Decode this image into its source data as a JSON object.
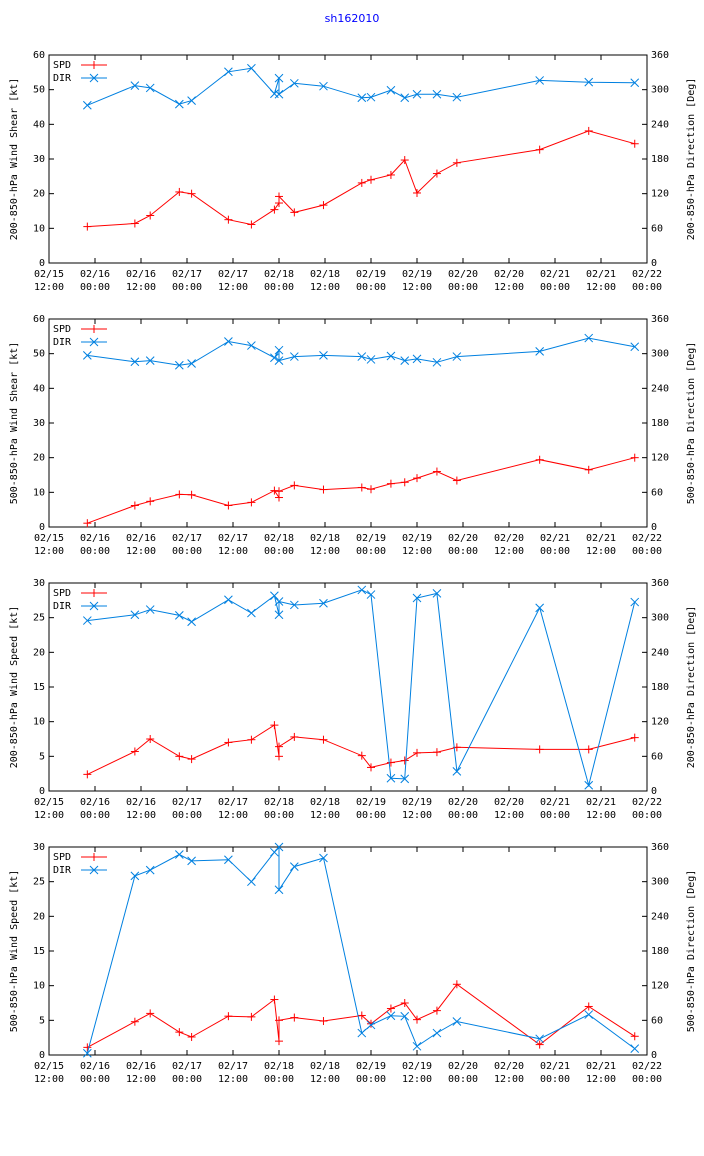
{
  "title": "sh162010",
  "colors": {
    "spd": "#ff0000",
    "dir": "#0080e0",
    "axis": "#000000",
    "title": "#0000ff"
  },
  "x_ticks": [
    {
      "t": -3,
      "label": "02/15\n12:00"
    },
    {
      "t": 0,
      "label": "02/16\n00:00"
    },
    {
      "t": 3,
      "label": "02/16\n12:00"
    },
    {
      "t": 6,
      "label": "02/17\n00:00"
    },
    {
      "t": 9,
      "label": "02/17\n12:00"
    },
    {
      "t": 12,
      "label": "02/18\n00:00"
    },
    {
      "t": 15,
      "label": "02/18\n12:00"
    },
    {
      "t": 18,
      "label": "02/19\n00:00"
    },
    {
      "t": 21,
      "label": "02/19\n12:00"
    },
    {
      "t": 24,
      "label": "02/20\n00:00"
    },
    {
      "t": 27,
      "label": "02/20\n12:00"
    },
    {
      "t": 30,
      "label": "02/21\n00:00"
    },
    {
      "t": 33,
      "label": "02/21\n12:00"
    },
    {
      "t": 36,
      "label": "02/22\n00:00"
    }
  ],
  "chart_data": [
    {
      "type": "line",
      "ylabel": "200-850-hPa Wind Shear [kt]",
      "y2label": "200-850-hPa Direction [Deg]",
      "ylim": [
        0,
        60
      ],
      "yticks": [
        0,
        10,
        20,
        30,
        40,
        50,
        60
      ],
      "y2lim": [
        0,
        360
      ],
      "y2ticks": [
        0,
        60,
        120,
        180,
        240,
        300,
        360
      ],
      "xlim": [
        -3,
        36
      ],
      "series": [
        {
          "name": "SPD",
          "axis": "left",
          "marker": "plus",
          "x": [
            -0.5,
            2.6,
            3.6,
            5.5,
            6.3,
            8.7,
            10.2,
            11.7,
            12.0,
            12.0,
            13.0,
            14.9,
            17.4,
            18.0,
            19.3,
            20.2,
            21.0,
            22.3,
            23.6,
            29.0,
            32.2,
            35.2
          ],
          "y": [
            10.5,
            11.4,
            13.7,
            20.5,
            20.0,
            12.5,
            11.1,
            15.4,
            17.3,
            19.2,
            14.6,
            16.7,
            23.1,
            24.0,
            25.4,
            29.7,
            20.2,
            25.8,
            28.9,
            32.7,
            38.1,
            34.4
          ]
        },
        {
          "name": "DIR",
          "axis": "right",
          "marker": "x",
          "x": [
            -0.5,
            2.6,
            3.6,
            5.5,
            6.3,
            8.7,
            10.2,
            11.7,
            12.0,
            12.0,
            13.0,
            14.9,
            17.4,
            18.0,
            19.3,
            20.2,
            21.0,
            22.3,
            23.6,
            29.0,
            32.2,
            35.2
          ],
          "y": [
            273,
            307,
            303,
            275,
            281,
            331,
            337,
            293,
            320,
            292,
            311,
            306,
            286,
            287,
            299,
            286,
            292,
            292,
            287,
            316,
            313,
            312
          ]
        }
      ]
    },
    {
      "type": "line",
      "ylabel": "500-850-hPa Wind Shear [kt]",
      "y2label": "500-850-hPa Direction [Deg]",
      "ylim": [
        0,
        60
      ],
      "yticks": [
        0,
        10,
        20,
        30,
        40,
        50,
        60
      ],
      "y2lim": [
        0,
        360
      ],
      "y2ticks": [
        0,
        60,
        120,
        180,
        240,
        300,
        360
      ],
      "xlim": [
        -3,
        36
      ],
      "series": [
        {
          "name": "SPD",
          "axis": "left",
          "marker": "plus",
          "x": [
            -0.5,
            2.6,
            3.6,
            5.5,
            6.3,
            8.7,
            10.2,
            11.7,
            12.0,
            12.0,
            13.0,
            14.9,
            17.4,
            18.0,
            19.3,
            20.2,
            21.0,
            22.3,
            23.6,
            29.0,
            32.2,
            35.2
          ],
          "y": [
            1.1,
            6.2,
            7.4,
            9.4,
            9.3,
            6.2,
            7.1,
            10.5,
            8.5,
            10.3,
            12.0,
            10.8,
            11.4,
            10.9,
            12.5,
            12.9,
            14.1,
            16.0,
            13.4,
            19.4,
            16.5,
            20.0
          ]
        },
        {
          "name": "DIR",
          "axis": "right",
          "marker": "x",
          "x": [
            -0.5,
            2.6,
            3.6,
            5.5,
            6.3,
            8.7,
            10.2,
            11.7,
            12.0,
            12.0,
            13.0,
            14.9,
            17.4,
            18.0,
            19.3,
            20.2,
            21.0,
            22.3,
            23.6,
            29.0,
            32.2,
            35.2
          ],
          "y": [
            297,
            286,
            288,
            280,
            283,
            321,
            314,
            293,
            306,
            288,
            295,
            297,
            295,
            290,
            296,
            288,
            291,
            285,
            295,
            304,
            327,
            312
          ]
        }
      ]
    },
    {
      "type": "line",
      "ylabel": "200-850-hPa Wind Speed [kt]",
      "y2label": "200-850-hPa Direction [Deg]",
      "ylim": [
        0,
        30
      ],
      "yticks": [
        0,
        5,
        10,
        15,
        20,
        25,
        30
      ],
      "y2lim": [
        0,
        360
      ],
      "y2ticks": [
        0,
        60,
        120,
        180,
        240,
        300,
        360
      ],
      "xlim": [
        -3,
        36
      ],
      "series": [
        {
          "name": "SPD",
          "axis": "left",
          "marker": "plus",
          "x": [
            -0.5,
            2.6,
            3.6,
            5.5,
            6.3,
            8.7,
            10.2,
            11.7,
            12.0,
            12.0,
            13.0,
            14.9,
            17.4,
            18.0,
            19.3,
            20.2,
            21.0,
            22.3,
            23.6,
            29.0,
            32.2,
            35.2
          ],
          "y": [
            2.4,
            5.7,
            7.5,
            5.0,
            4.6,
            7.0,
            7.4,
            9.5,
            5.0,
            6.4,
            7.8,
            7.4,
            5.1,
            3.4,
            4.1,
            4.4,
            5.5,
            5.6,
            6.3,
            6.0,
            6.0,
            7.7
          ]
        },
        {
          "name": "DIR",
          "axis": "right",
          "marker": "x",
          "x": [
            -0.5,
            2.6,
            3.6,
            5.5,
            6.3,
            8.7,
            10.2,
            11.7,
            12.0,
            12.0,
            13.0,
            14.9,
            17.4,
            18.0,
            19.3,
            20.2,
            21.0,
            22.3,
            23.6,
            29.0,
            32.2,
            35.2
          ],
          "y": [
            295,
            305,
            314,
            304,
            293,
            331,
            308,
            338,
            305,
            328,
            322,
            325,
            348,
            340,
            22,
            21,
            334,
            342,
            34,
            317,
            10,
            327
          ]
        }
      ]
    },
    {
      "type": "line",
      "ylabel": "500-850-hPa Wind Speed [kt]",
      "y2label": "500-850-hPa Direction [Deg]",
      "ylim": [
        0,
        30
      ],
      "yticks": [
        0,
        5,
        10,
        15,
        20,
        25,
        30
      ],
      "y2lim": [
        0,
        360
      ],
      "y2ticks": [
        0,
        60,
        120,
        180,
        240,
        300,
        360
      ],
      "xlim": [
        -3,
        36
      ],
      "series": [
        {
          "name": "SPD",
          "axis": "left",
          "marker": "plus",
          "x": [
            -0.5,
            2.6,
            3.6,
            5.5,
            6.3,
            8.7,
            10.2,
            11.7,
            12.0,
            12.0,
            13.0,
            14.9,
            17.4,
            18.0,
            19.3,
            20.2,
            21.0,
            22.3,
            23.6,
            29.0,
            32.2,
            35.2
          ],
          "y": [
            1.1,
            4.8,
            6.0,
            3.3,
            2.6,
            5.6,
            5.5,
            8.0,
            2.0,
            5.0,
            5.4,
            4.9,
            5.7,
            4.5,
            6.7,
            7.5,
            5.1,
            6.4,
            10.2,
            1.5,
            7.0,
            2.7
          ]
        },
        {
          "name": "DIR",
          "axis": "right",
          "marker": "x",
          "x": [
            -0.5,
            2.6,
            3.6,
            5.5,
            6.3,
            8.7,
            10.2,
            11.7,
            12.0,
            12.0,
            13.0,
            14.9,
            17.4,
            18.0,
            19.3,
            20.2,
            21.0,
            22.3,
            23.6,
            29.0,
            32.2,
            35.2
          ],
          "y": [
            3,
            310,
            320,
            347,
            336,
            338,
            300,
            351,
            360,
            286,
            326,
            341,
            38,
            52,
            68,
            67,
            15,
            38,
            58,
            28,
            70,
            11
          ]
        }
      ]
    }
  ]
}
